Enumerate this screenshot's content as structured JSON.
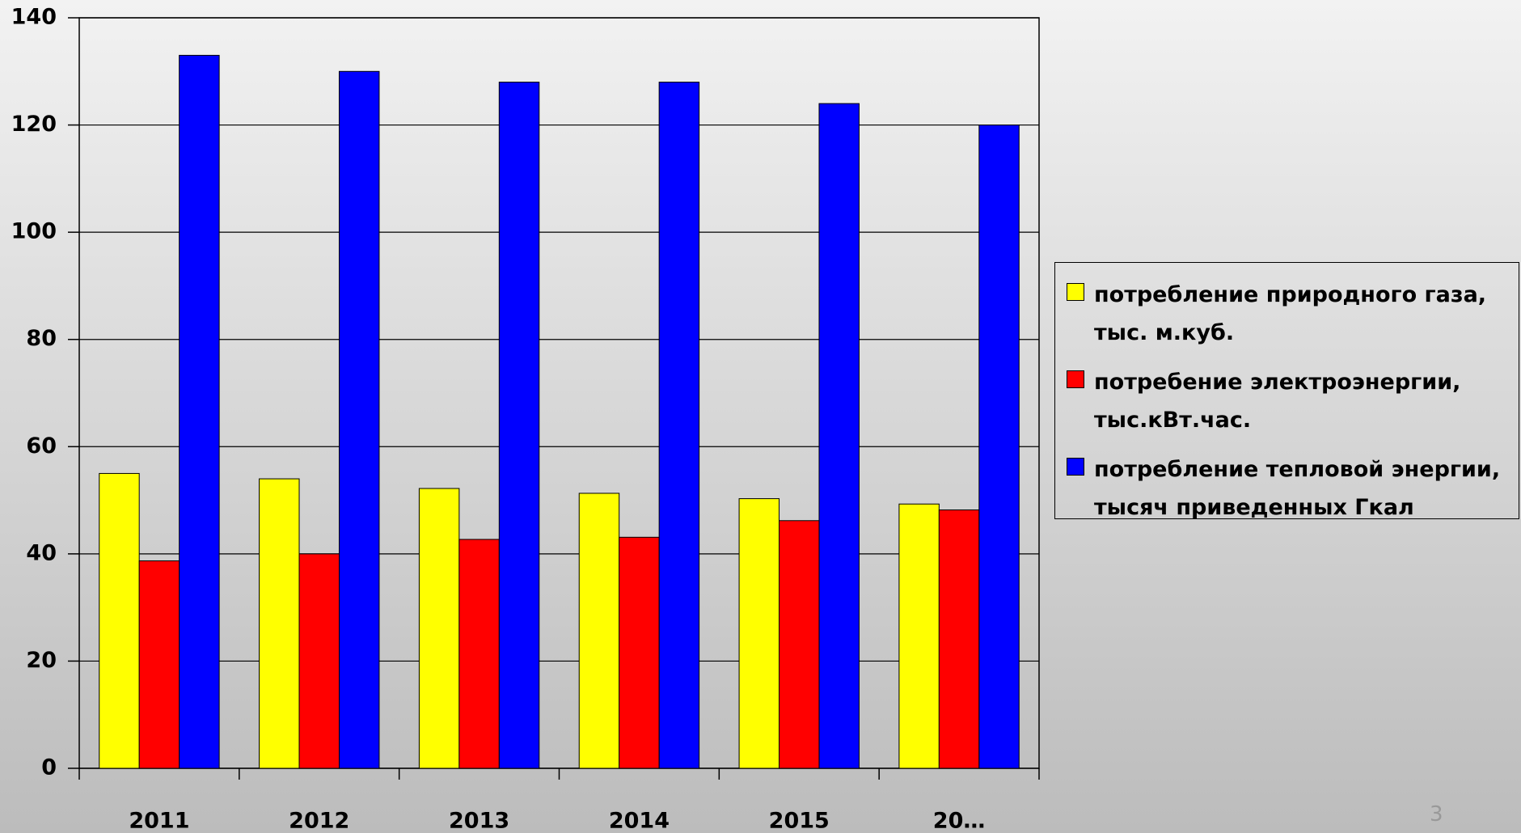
{
  "chart_data": {
    "type": "bar",
    "categories": [
      "2011",
      "2012",
      "2013",
      "2014",
      "2015",
      "20…"
    ],
    "series": [
      {
        "name": "потребление природного газа,\nтыс. м.куб.",
        "color": "#ffff00",
        "values": [
          55,
          54,
          52.2,
          51.3,
          50.3,
          49.3
        ]
      },
      {
        "name": "потребение электроэнергии,\nтыс.кВт.час.",
        "color": "#ff0000",
        "values": [
          38.7,
          40,
          42.7,
          43.1,
          46.2,
          48.2
        ]
      },
      {
        "name": "потребление тепловой энергии,\nтысяч приведенных Гкал",
        "color": "#0000ff",
        "values": [
          133,
          130,
          128,
          128,
          124,
          120
        ]
      }
    ],
    "ylim": [
      0,
      140
    ],
    "yticks": [
      0,
      20,
      40,
      60,
      80,
      100,
      120,
      140
    ],
    "grid": true,
    "legend": "right"
  },
  "slide_number": "3"
}
